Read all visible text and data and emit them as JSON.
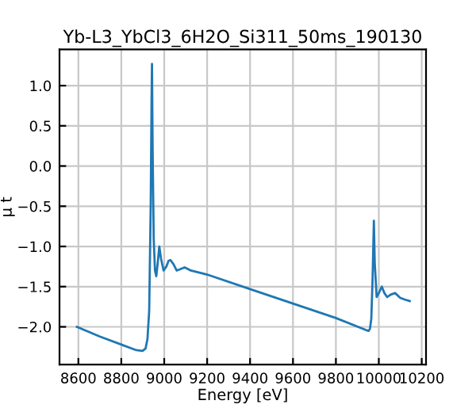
{
  "chart_data": {
    "type": "line",
    "title": "Yb-L3_YbCl3_6H2O_Si311_50ms_190130",
    "xlabel": "Energy [eV]",
    "ylabel": "μ t",
    "series": [
      {
        "color": "#1f77b4",
        "x": [
          8593,
          8700,
          8800,
          8870,
          8899,
          8913,
          8922,
          8930,
          8937,
          8941,
          8943,
          8946,
          8951,
          8957,
          8963,
          8970,
          8977,
          8985,
          8997,
          9010,
          9020,
          9029,
          9043,
          9058,
          9077,
          9095,
          9110,
          9124,
          9200,
          9400,
          9600,
          9800,
          9940,
          9953,
          9959,
          9965,
          9971,
          9977,
          9981,
          9990,
          10000,
          10014,
          10026,
          10039,
          10055,
          10076,
          10100,
          10120,
          10144
        ],
        "values": [
          -2.0,
          -2.12,
          -2.22,
          -2.29,
          -2.3,
          -2.27,
          -2.15,
          -1.8,
          -0.5,
          0.8,
          1.27,
          0.2,
          -0.9,
          -1.3,
          -1.37,
          -1.2,
          -1.0,
          -1.15,
          -1.3,
          -1.25,
          -1.18,
          -1.17,
          -1.22,
          -1.3,
          -1.28,
          -1.26,
          -1.28,
          -1.3,
          -1.35,
          -1.53,
          -1.71,
          -1.89,
          -2.04,
          -2.05,
          -2.02,
          -1.9,
          -1.4,
          -0.68,
          -1.2,
          -1.63,
          -1.58,
          -1.5,
          -1.58,
          -1.63,
          -1.6,
          -1.58,
          -1.64,
          -1.66,
          -1.68
        ]
      }
    ],
    "xlim": [
      8512,
      10220
    ],
    "ylim": [
      -2.47,
      1.45
    ],
    "xticks": [
      8600,
      8800,
      9000,
      9200,
      9400,
      9600,
      9800,
      10000,
      10200
    ],
    "yticks": [
      {
        "value": -2.0,
        "label": "−2.0"
      },
      {
        "value": -1.5,
        "label": "−1.5"
      },
      {
        "value": -1.0,
        "label": "−1.0"
      },
      {
        "value": -0.5,
        "label": "−0.5"
      },
      {
        "value": 0.0,
        "label": "0.0"
      },
      {
        "value": 0.5,
        "label": "0.5"
      },
      {
        "value": 1.0,
        "label": "1.0"
      }
    ],
    "grid": true,
    "legend": false
  }
}
